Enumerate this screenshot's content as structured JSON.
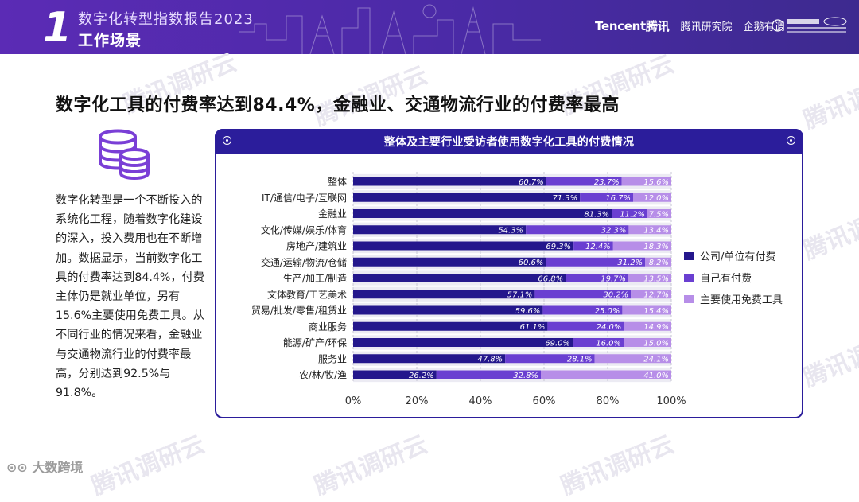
{
  "header": {
    "section_number": "1",
    "report_title": "数字化转型指数报告2023",
    "section_title": "工作场景",
    "logos": [
      "Tencent腾讯",
      "腾讯研究院",
      "企鹅有调"
    ]
  },
  "watermark": "腾讯调研云",
  "heading": "数字化工具的付费率达到84.4%，金融业、交通物流行业的付费率最高",
  "description": "数字化转型是一个不断投入的系统化工程，随着数字化建设的深入，投入费用也在不断增加。数据显示，当前数字化工具的付费率达到84.4%，付费主体仍是就业单位，另有15.6%主要使用免费工具。从不同行业的情况来看，金融业与交通物流行业的付费率最高，分别达到92.5%与91.8%。",
  "panel": {
    "title": "整体及主要行业受访者使用数字化工具的付费情况"
  },
  "footer": {
    "brand": "大数跨境"
  },
  "colors": {
    "company": "#24178c",
    "self": "#6a3fd1",
    "free": "#b78ee8",
    "header": "#4a2aa6"
  },
  "chart_data": {
    "type": "bar",
    "orientation": "horizontal",
    "stacked": true,
    "title": "整体及主要行业受访者使用数字化工具的付费情况",
    "categories": [
      "整体",
      "IT/通信/电子/互联网",
      "金融业",
      "文化/传媒/娱乐/体育",
      "房地产/建筑业",
      "交通/运输/物流/仓储",
      "生产/加工/制造",
      "文体教育/工艺美术",
      "贸易/批发/零售/租赁业",
      "商业服务",
      "能源/矿产/环保",
      "服务业",
      "农/林/牧/渔"
    ],
    "series": [
      {
        "name": "公司/单位有付费",
        "values": [
          60.7,
          71.3,
          81.3,
          54.3,
          69.3,
          60.6,
          66.8,
          57.1,
          59.6,
          61.1,
          69.0,
          47.8,
          26.2
        ],
        "labels": [
          "60.7%",
          "71.3%",
          "81.3%",
          "54.3%",
          "69.3%",
          "60.6%",
          "66.8%",
          "57.1%",
          "59.6%",
          "61.1%",
          "69.0%",
          "47.8%",
          "26.2%"
        ]
      },
      {
        "name": "自己有付费",
        "values": [
          23.7,
          16.7,
          11.2,
          32.3,
          12.4,
          31.2,
          19.7,
          30.2,
          25.0,
          24.0,
          16.0,
          28.1,
          32.8
        ],
        "labels": [
          "23.7%",
          "16.7%",
          "11.2%",
          "32.3%",
          "12.4%",
          "31.2%",
          "19.7%",
          "30.2%",
          "25.0%",
          "24.0%",
          "16.0%",
          "28.1%",
          "32.8%"
        ]
      },
      {
        "name": "主要使用免费工具",
        "values": [
          15.6,
          12.0,
          7.5,
          13.4,
          18.3,
          8.2,
          13.5,
          12.7,
          15.4,
          14.9,
          15.0,
          24.1,
          41.0
        ],
        "labels": [
          "15.6%",
          "12.0%",
          "7.5%",
          "13.4%",
          "18.3%",
          "8.2%",
          "13.5%",
          "12.7%",
          "15.4%",
          "14.9%",
          "15.0%",
          "24.1%",
          "41.0%"
        ]
      }
    ],
    "xlim": [
      0,
      100
    ],
    "xticks": [
      "0%",
      "20%",
      "40%",
      "60%",
      "80%",
      "100%"
    ],
    "legend_position": "right"
  }
}
